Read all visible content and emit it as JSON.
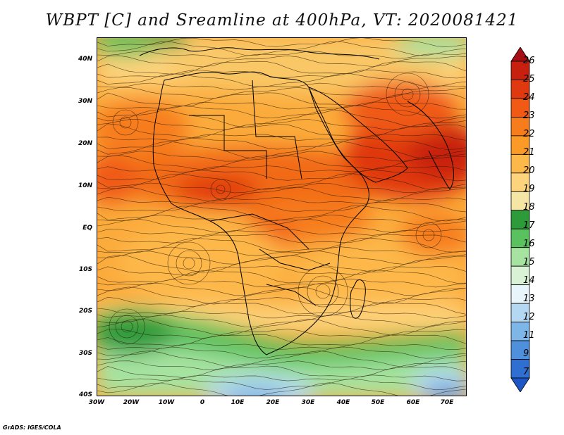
{
  "title": "WBPT [C] and Sreamline at 400hPa, VT: 2020081421",
  "credit": "GrADS: IGES/COLA",
  "lat_labels": [
    "40N",
    "30N",
    "20N",
    "10N",
    "EQ",
    "10S",
    "20S",
    "30S",
    "40S"
  ],
  "lon_labels": [
    "30W",
    "20W",
    "10W",
    "0",
    "10E",
    "20E",
    "30E",
    "40E",
    "50E",
    "60E",
    "70E"
  ],
  "colorbar": {
    "levels": [
      "26",
      "25",
      "24",
      "23",
      "22",
      "21",
      "20",
      "19",
      "18",
      "17",
      "16",
      "15",
      "14",
      "13",
      "12",
      "11",
      "9",
      "7"
    ],
    "colors": [
      "#a50f15",
      "#c8200f",
      "#e0380f",
      "#f05a14",
      "#f77d1c",
      "#fb9a26",
      "#fdb84a",
      "#fdd37c",
      "#f5e6a6",
      "#2e9b3a",
      "#59c15e",
      "#a6e3a0",
      "#d9f2d6",
      "#e8f6fb",
      "#b4d8f2",
      "#7fb6e8",
      "#4f90dc",
      "#2f6fd1",
      "#1e55c4"
    ]
  }
}
